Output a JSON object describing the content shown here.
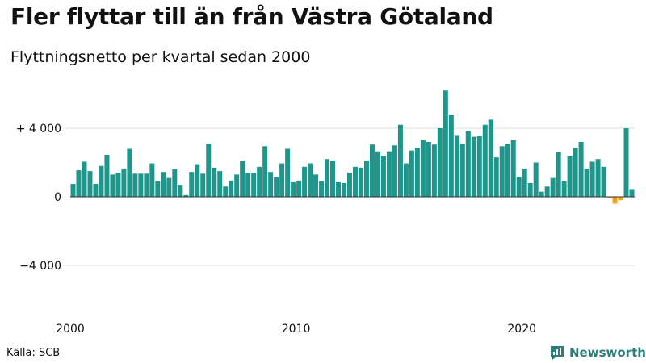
{
  "header": {
    "title": "Fler flyttar till än från Västra Götaland",
    "subtitle": "Flyttningsnetto per kvartal sedan 2000"
  },
  "footer": {
    "source": "Källa: SCB",
    "brand": "Newsworthy"
  },
  "colors": {
    "positive": "#1d968b",
    "negative": "#f5a31a",
    "grid": "#dddddd",
    "zero_line": "#333333",
    "brand": "#2b7e79"
  },
  "chart_data": {
    "type": "bar",
    "title": "Fler flyttar till än från Västra Götaland",
    "subtitle": "Flyttningsnetto per kvartal sedan 2000",
    "x_start": "2000 Q1",
    "frequency": "quarterly",
    "x_ticks": [
      "2000",
      "2010",
      "2020"
    ],
    "y_ticks": [
      {
        "value": 4000,
        "label": "+ 4 000"
      },
      {
        "value": 0,
        "label": "0"
      },
      {
        "value": -4000,
        "label": "−4 000"
      }
    ],
    "ylim": [
      -6500,
      6500
    ],
    "grid": true,
    "values": [
      750,
      1550,
      2050,
      1500,
      750,
      1800,
      2450,
      1300,
      1400,
      1650,
      2800,
      1350,
      1350,
      1350,
      1950,
      900,
      1450,
      1100,
      1600,
      700,
      100,
      1450,
      1900,
      1350,
      3100,
      1700,
      1500,
      600,
      950,
      1300,
      2100,
      1400,
      1400,
      1750,
      2950,
      1450,
      1150,
      1950,
      2800,
      850,
      950,
      1750,
      1950,
      1300,
      900,
      2200,
      2100,
      850,
      800,
      1400,
      1750,
      1700,
      2100,
      3050,
      2650,
      2400,
      2650,
      3000,
      4200,
      1950,
      2700,
      2850,
      3300,
      3200,
      3050,
      4000,
      6200,
      4800,
      3600,
      3100,
      3850,
      3500,
      3550,
      4200,
      4500,
      2300,
      2950,
      3100,
      3300,
      1150,
      1650,
      800,
      2000,
      300,
      600,
      1100,
      2600,
      900,
      2400,
      2850,
      3200,
      1650,
      2050,
      2200,
      1750,
      -50,
      -400,
      -200,
      4000,
      450
    ]
  }
}
